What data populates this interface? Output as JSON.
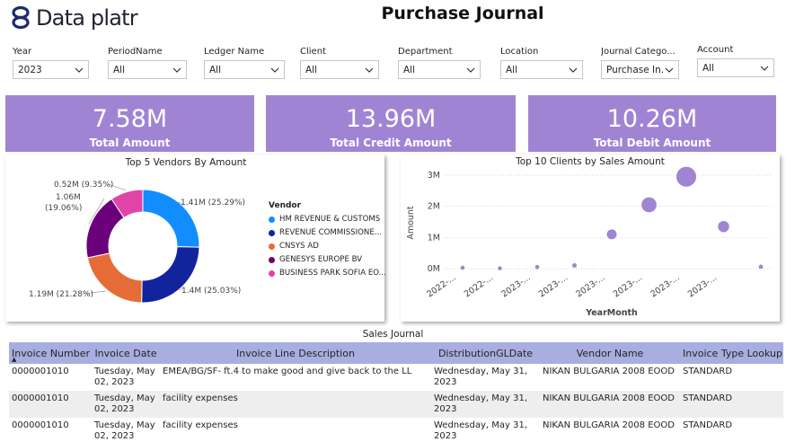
{
  "brand": {
    "name": "Data platr"
  },
  "title": "Purchase Journal",
  "slicers": [
    {
      "label": "Year",
      "value": "2023"
    },
    {
      "label": "PeriodName",
      "value": "All"
    },
    {
      "label": "Ledger Name",
      "value": "All"
    },
    {
      "label": "Client",
      "value": "All"
    },
    {
      "label": "Department",
      "value": "All"
    },
    {
      "label": "Location",
      "value": "All"
    },
    {
      "label": "Journal Catego...",
      "value": "Purchase In..."
    },
    {
      "label": "Account",
      "value": "All"
    }
  ],
  "kpis": [
    {
      "value": "7.58M",
      "label": "Total Amount"
    },
    {
      "value": "13.96M",
      "label": "Total Credit Amount"
    },
    {
      "value": "10.26M",
      "label": "Total Debit Amount"
    }
  ],
  "donut": {
    "title": "Top 5 Vendors By Amount",
    "legend_title": "Vendor",
    "slices": [
      {
        "name": "HM REVENUE & CUSTOMS",
        "value": 1.41,
        "label": "1.41M (25.29%)",
        "color": "#118dff"
      },
      {
        "name": "REVENUE COMMISSIONE...",
        "value": 1.4,
        "label": "1.4M (25.03%)",
        "color": "#12239e"
      },
      {
        "name": "CNSYS AD",
        "value": 1.19,
        "label": "1.19M (21.28%)",
        "color": "#e66c37"
      },
      {
        "name": "GENESYS EUROPE BV",
        "value": 1.06,
        "label_line1": "1.06M",
        "label_line2": "(19.06%)",
        "color": "#6b007b"
      },
      {
        "name": "BUSINESS PARK SOFIA EO...",
        "value": 0.52,
        "label": "0.52M (9.35%)",
        "color": "#e044a7"
      }
    ]
  },
  "chart_data": {
    "type": "scatter",
    "title": "Top 10 Clients by Sales Amount",
    "xlabel": "YearMonth",
    "ylabel": "Amount",
    "x_ticks": [
      "2022-...",
      "2022-...",
      "2023-...",
      "2023-...",
      "2023-...",
      "2023-...",
      "2023-...",
      "2023-..."
    ],
    "y_ticks": [
      "0M",
      "1M",
      "2M",
      "3M"
    ],
    "ylim": [
      0,
      3000000
    ],
    "color": "#a084d4",
    "points": [
      {
        "x_index": 0,
        "y": 30000
      },
      {
        "x_index": 1,
        "y": 10000
      },
      {
        "x_index": 2,
        "y": 50000
      },
      {
        "x_index": 3,
        "y": 100000
      },
      {
        "x_index": 4,
        "y": 1100000
      },
      {
        "x_index": 5,
        "y": 2050000
      },
      {
        "x_index": 6,
        "y": 2950000
      },
      {
        "x_index": 7,
        "y": 1350000
      },
      {
        "x_index": 8,
        "y": 60000
      }
    ]
  },
  "sales_journal": {
    "title": "Sales Journal",
    "columns": [
      "Invoice Number",
      "Invoice Date",
      "Invoice Line Description",
      "DistributionGLDate",
      "Vendor Name",
      "Invoice Type Lookup"
    ],
    "rows": [
      [
        "0000001010",
        "Tuesday, May 02, 2023",
        "EMEA/BG/SF- ft.4 to make good and give back to the LL",
        "Wednesday, May 31, 2023",
        "NIKAN BULGARIA 2008 EOOD",
        "STANDARD"
      ],
      [
        "0000001010",
        "Tuesday, May 02, 2023",
        "facility expenses",
        "Wednesday, May 31, 2023",
        "NIKAN BULGARIA 2008 EOOD",
        "STANDARD"
      ],
      [
        "0000001010",
        "Tuesday, May 02, 2023",
        "facility expenses",
        "Wednesday, May 31, 2023",
        "NIKAN BULGARIA 2008 EOOD",
        "STANDARD"
      ]
    ]
  }
}
